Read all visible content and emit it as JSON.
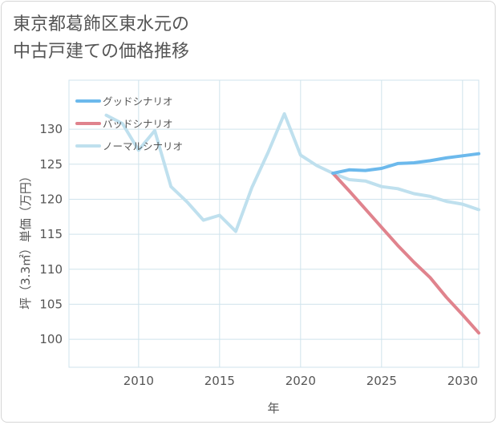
{
  "chart_data": {
    "type": "line",
    "title_lines": [
      "東京都葛飾区東水元の",
      "中古戸建ての価格推移"
    ],
    "xlabel": "年",
    "ylabel": "坪（3.3㎡）単価（万円）",
    "xlim": [
      2005.7,
      2031
    ],
    "ylim": [
      96,
      137
    ],
    "xticks": [
      2010,
      2015,
      2020,
      2025,
      2030
    ],
    "yticks": [
      100,
      105,
      110,
      115,
      120,
      125,
      130
    ],
    "legend_position": "top-left",
    "series": [
      {
        "name": "グッドシナリオ",
        "color": "#6cb9ec",
        "x": [
          2022,
          2023,
          2024,
          2025,
          2026,
          2027,
          2028,
          2029,
          2030,
          2031
        ],
        "y": [
          123.7,
          124.2,
          124.1,
          124.4,
          125.1,
          125.2,
          125.5,
          125.9,
          126.2,
          126.5
        ]
      },
      {
        "name": "バッドシナリオ",
        "color": "#e0838d",
        "x": [
          2022,
          2023,
          2024,
          2025,
          2026,
          2027,
          2028,
          2029,
          2030,
          2031
        ],
        "y": [
          123.7,
          121.2,
          118.6,
          116.0,
          113.4,
          111.0,
          108.8,
          106.0,
          103.5,
          100.9
        ]
      },
      {
        "name": "ノーマルシナリオ",
        "color": "#bfe0ee",
        "x": [
          2008,
          2009,
          2010,
          2011,
          2012,
          2013,
          2014,
          2015,
          2016,
          2017,
          2018,
          2019,
          2020,
          2021,
          2022,
          2023,
          2024,
          2025,
          2026,
          2027,
          2028,
          2029,
          2030,
          2031
        ],
        "y": [
          132.0,
          130.8,
          127.0,
          129.8,
          121.8,
          119.6,
          117.0,
          117.7,
          115.4,
          121.7,
          126.7,
          132.2,
          126.3,
          124.8,
          123.7,
          122.8,
          122.6,
          121.8,
          121.5,
          120.8,
          120.4,
          119.7,
          119.3,
          118.5
        ]
      }
    ]
  }
}
